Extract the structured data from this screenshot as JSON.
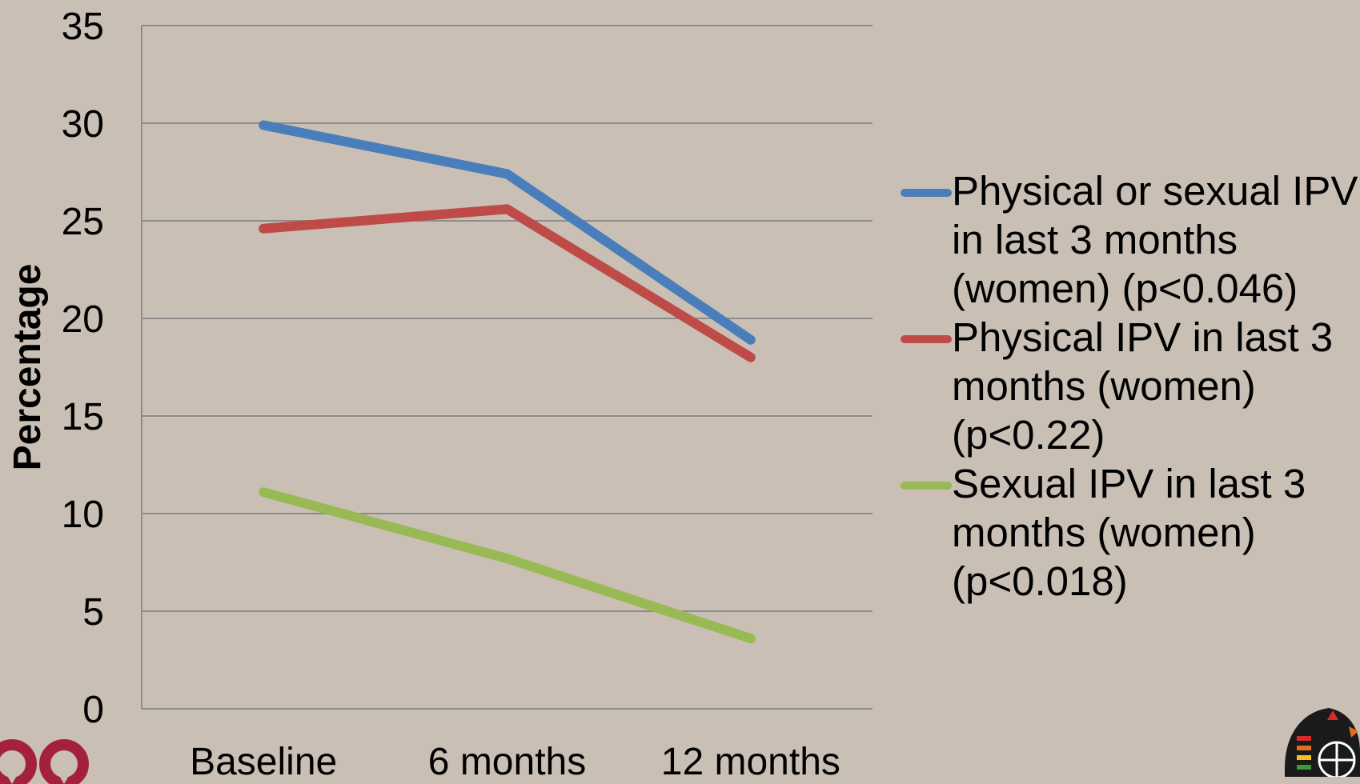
{
  "chart_data": {
    "type": "line",
    "categories": [
      "Baseline",
      "6 months",
      "12 months"
    ],
    "series": [
      {
        "name": "Physical or sexual IPV in last 3 months (women) (p<0.046)",
        "values": [
          29.9,
          27.4,
          18.9
        ],
        "color": "#4a7ebb"
      },
      {
        "name": "Physical IPV in last 3 months (women) (p<0.22)",
        "values": [
          24.6,
          25.6,
          18.0
        ],
        "color": "#be4b48"
      },
      {
        "name": "Sexual IPV in last 3 months (women) (p<0.018)",
        "values": [
          11.1,
          7.7,
          3.6
        ],
        "color": "#98b954"
      }
    ],
    "yticks": [
      "0",
      "5",
      "10",
      "15",
      "20",
      "25",
      "30",
      "35"
    ],
    "ylim": [
      0,
      35
    ],
    "ylabel": "Percentage",
    "grid": true,
    "legend_position": "right",
    "gridline_color": "#8c8c8c"
  },
  "legend": {
    "items": [
      {
        "label": "Physical or sexual IPV in last 3 months (women) (p<0.046)"
      },
      {
        "label": "Physical IPV in last 3 months (women) (p<0.22)"
      },
      {
        "label": "Sexual IPV in last 3 months (women) (p<0.018)"
      }
    ]
  },
  "background_color": "#c9bfb5",
  "logos": {
    "left": "red-ribbon-logo-icon",
    "right": "globe-emblem-logo-icon"
  }
}
